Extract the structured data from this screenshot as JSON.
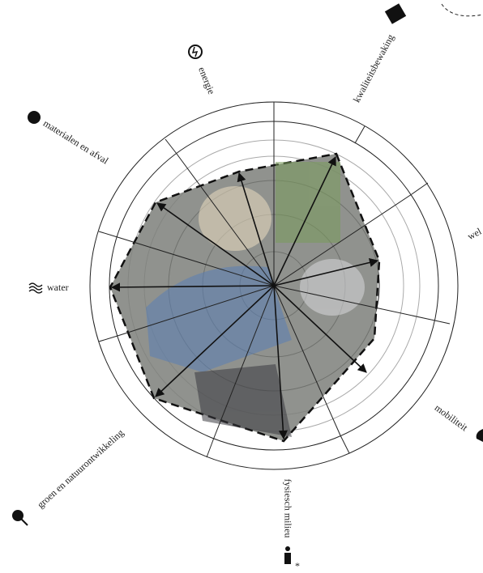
{
  "axes": [
    {
      "label": "kwaliteitsbewaking"
    },
    {
      "label": "energie"
    },
    {
      "label": "materialen en afval"
    },
    {
      "label": "water"
    },
    {
      "label": "groen en natuurontwikkeling"
    },
    {
      "label": "fysiesch milieu"
    },
    {
      "label": "mobiliteit"
    },
    {
      "label": "wel"
    }
  ]
}
